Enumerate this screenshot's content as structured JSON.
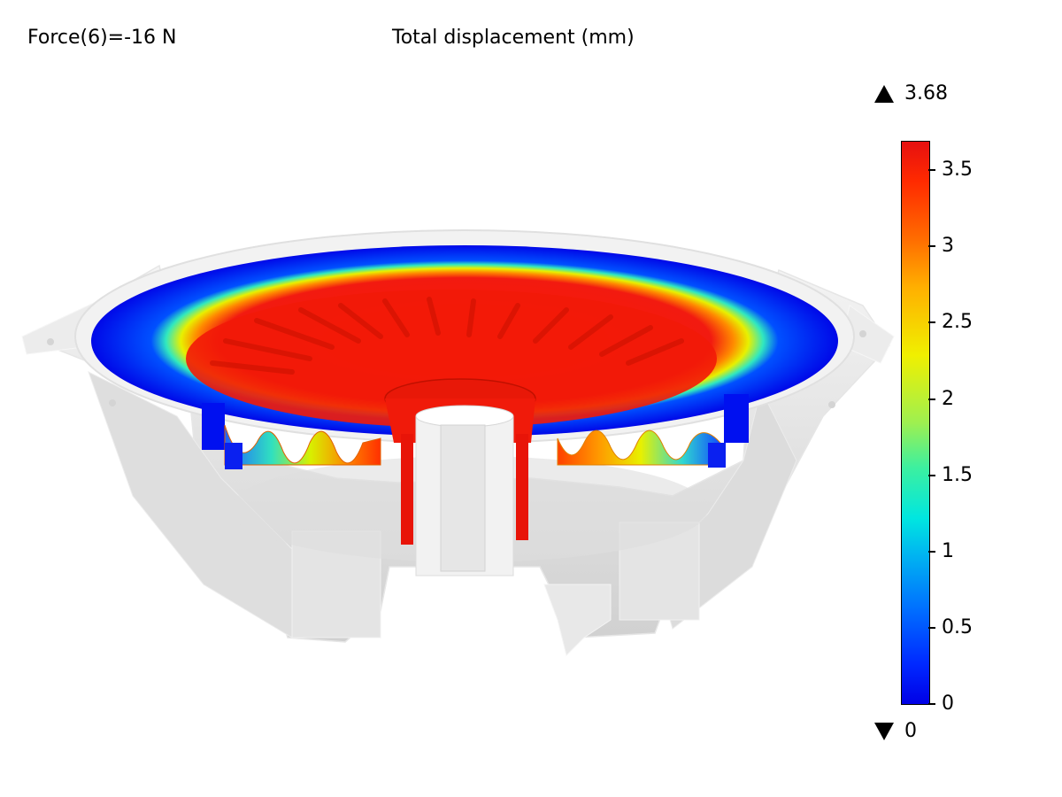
{
  "header": {
    "parameter_label": "Force(6)=-16 N",
    "title": "Total displacement (mm)"
  },
  "legend": {
    "max_value": "3.68",
    "min_value": "0",
    "ticks": [
      "3.5",
      "3",
      "2.5",
      "2",
      "1.5",
      "1",
      "0.5",
      "0"
    ],
    "colormap": "rainbow",
    "colors": {
      "low": "#0000e6",
      "high": "#e61010"
    }
  }
}
